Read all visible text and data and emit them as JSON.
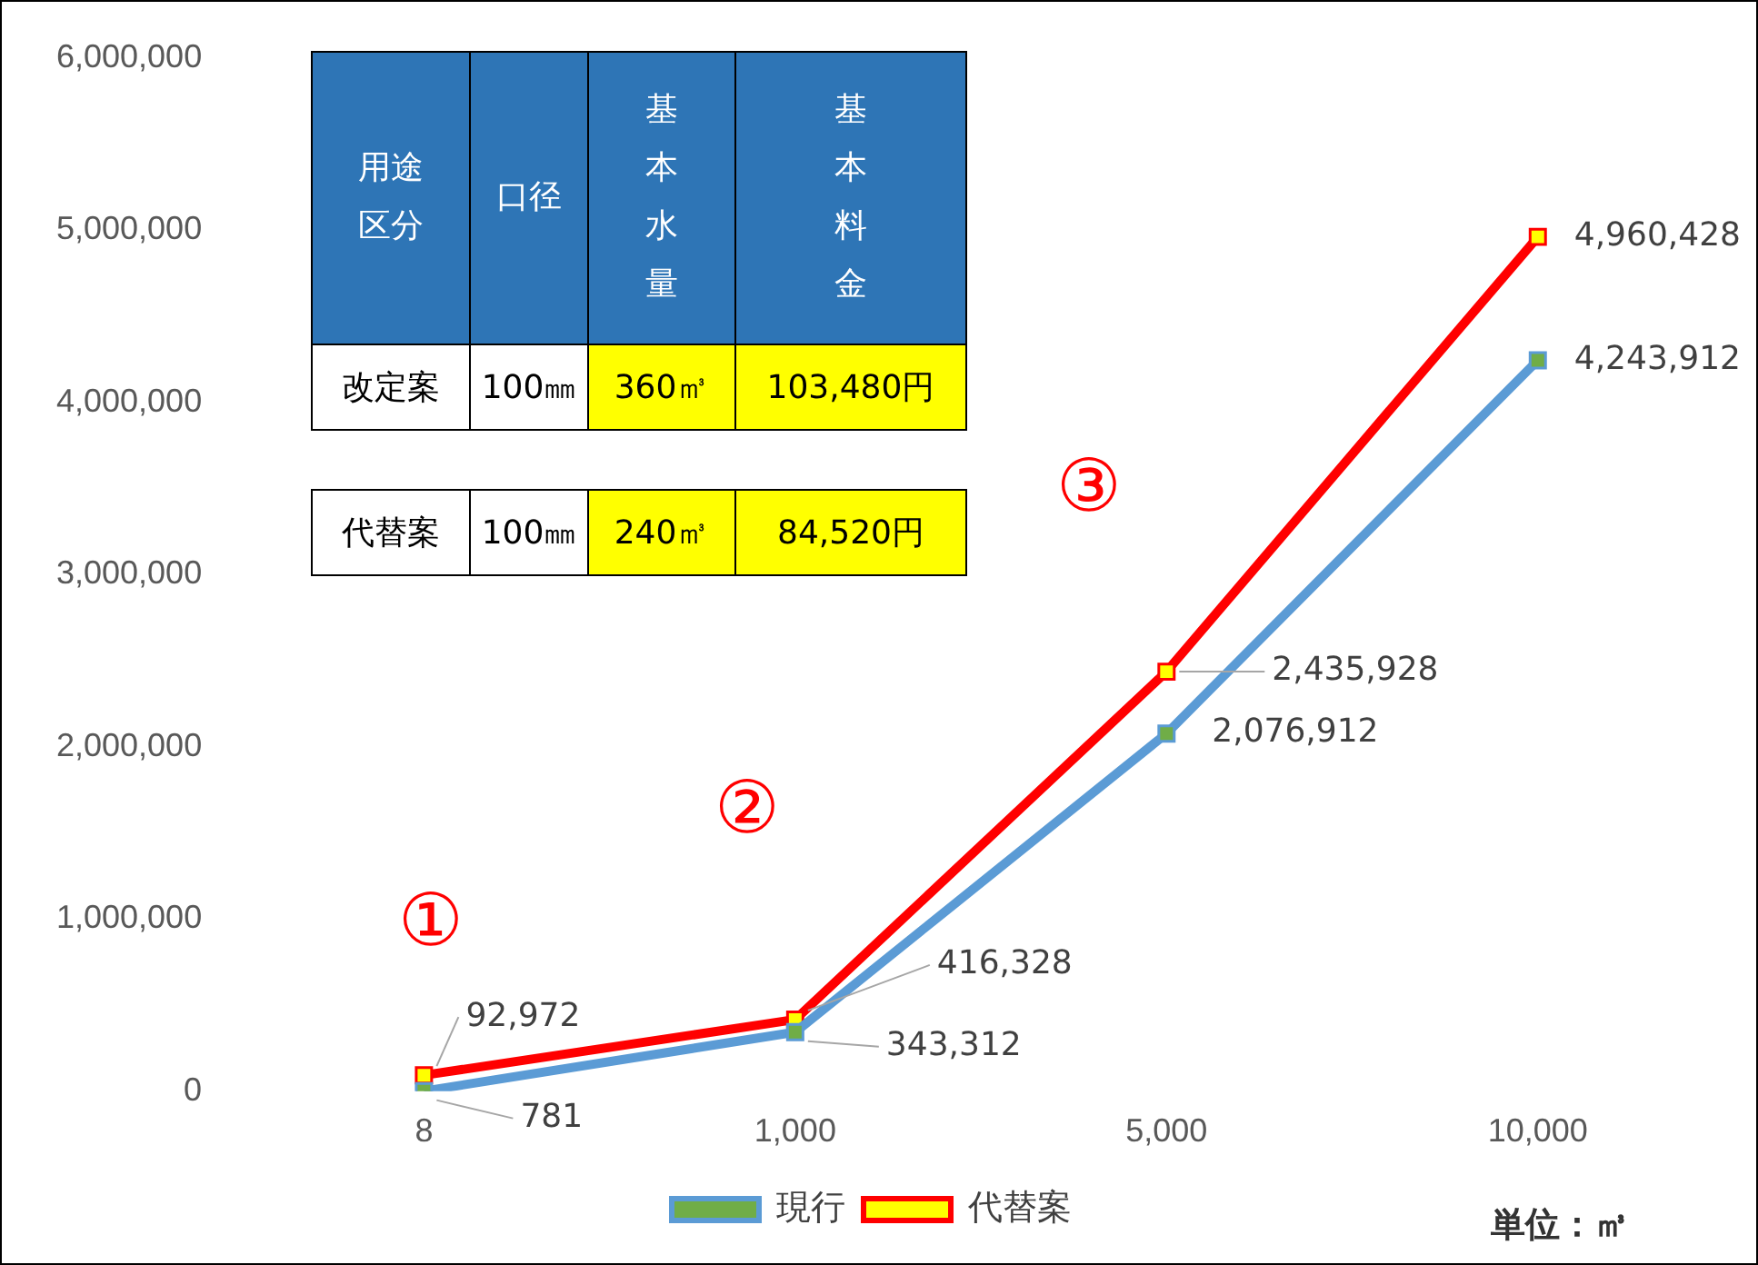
{
  "chart_data": [
    {
      "type": "line",
      "categories": [
        "8",
        "1,000",
        "5,000",
        "10,000"
      ],
      "series": [
        {
          "name": "現行",
          "color": "#5b9bd5",
          "colors": [
            "#70ad47",
            "#70ad47",
            "#70ad47",
            "#70ad47"
          ],
          "values": [
            781,
            343312,
            2076912,
            4243912
          ],
          "value_labels": [
            "781",
            "343,312",
            "2,076,912",
            "4,243,912"
          ]
        },
        {
          "name": "代替案",
          "color": "#ff0000",
          "colors": [
            "#ffff00",
            "#ffff00",
            "#ffff00",
            "#ffff00"
          ],
          "values": [
            92972,
            416328,
            2435928,
            4960428
          ],
          "value_labels": [
            "92,972",
            "416,328",
            "2,435,928",
            "4,960,428"
          ]
        }
      ],
      "ylim": [
        0,
        6000000
      ],
      "yticks": [
        0,
        {
          "value": 1000000,
          "label": "1,000,000"
        },
        {
          "value": 2000000,
          "label": "2,000,000"
        },
        {
          "value": 3000000,
          "label": "3,000,000"
        },
        {
          "value": 4000000,
          "label": "4,000,000"
        },
        {
          "value": 5000000,
          "label": "5,000,000"
        },
        {
          "value": 6000000,
          "label": "6,000,000"
        }
      ],
      "grid": false,
      "legend": "bottom",
      "marker": "square",
      "line_style": "solid",
      "annotations": [
        "①",
        "②",
        "③",
        "単位：㎥"
      ]
    },
    {
      "type": "other",
      "categories": [
        "用途区分",
        "口径",
        "基本水量",
        "基本料金"
      ],
      "cell_labels": [
        [
          "改定案",
          "100㎜",
          "360㎥",
          "103,480円"
        ],
        [
          "代替案",
          "100㎜",
          "240㎥",
          "84,520円"
        ]
      ]
    }
  ]
}
